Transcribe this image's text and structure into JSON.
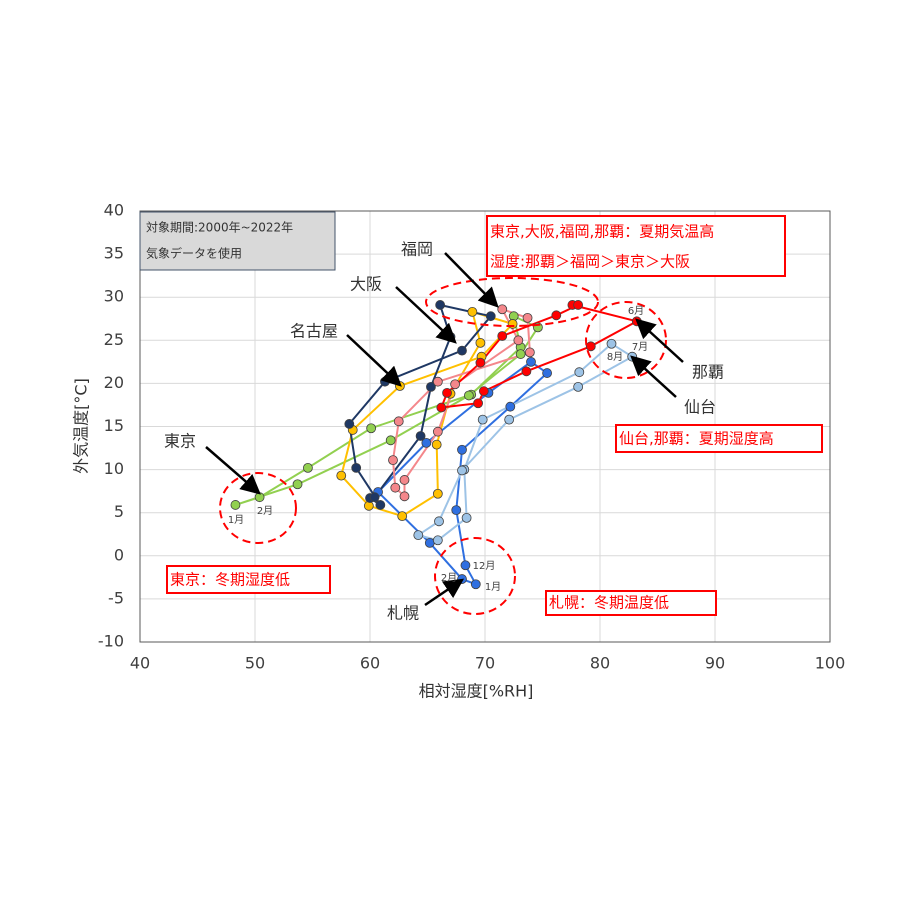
{
  "chart_data": {
    "type": "scatter",
    "xlabel": "相対湿度[%RH]",
    "ylabel": "外気温度[°C]",
    "xlim": [
      40,
      100
    ],
    "xticks": [
      40,
      50,
      60,
      70,
      80,
      90,
      100
    ],
    "ylim": [
      -10,
      40
    ],
    "yticks": [
      -10,
      -5,
      0,
      5,
      10,
      15,
      20,
      25,
      30,
      35,
      40
    ],
    "grid": true,
    "series": [
      {
        "name": "札幌",
        "color": "#2f6fe0",
        "x": [
          69.2,
          68.0,
          65.2,
          60.7,
          64.9,
          70.3,
          74.0,
          75.4,
          72.2,
          68.0,
          67.5,
          68.3
        ],
        "values": [
          -3.3,
          -2.7,
          1.5,
          7.4,
          13.1,
          18.9,
          22.5,
          21.2,
          17.3,
          12.3,
          5.3,
          -1.1
        ]
      },
      {
        "name": "仙台",
        "color": "#9dc3e6",
        "x": [
          64.2,
          65.9,
          68.4,
          68.2,
          69.8,
          78.2,
          81.0,
          82.8,
          78.1,
          72.1,
          68.0,
          66.0
        ],
        "values": [
          2.4,
          1.8,
          4.4,
          10.0,
          15.8,
          21.3,
          24.6,
          23.1,
          19.6,
          15.8,
          9.9,
          4.0
        ]
      },
      {
        "name": "東京",
        "color": "#92d050",
        "x": [
          48.3,
          50.4,
          54.6,
          60.1,
          68.8,
          73.1,
          72.5,
          74.6,
          73.1,
          68.6,
          61.8,
          53.7
        ],
        "values": [
          5.9,
          6.8,
          10.2,
          14.8,
          18.7,
          24.2,
          27.8,
          26.5,
          23.4,
          18.6,
          13.4,
          8.3
        ]
      },
      {
        "name": "名古屋",
        "color": "#ffc000",
        "x": [
          62.8,
          59.9,
          57.5,
          58.5,
          62.6,
          69.7,
          72.4,
          68.9,
          69.6,
          67.0,
          65.8,
          65.9
        ],
        "values": [
          4.6,
          5.8,
          9.3,
          14.6,
          19.7,
          23.1,
          26.9,
          28.3,
          24.7,
          18.8,
          12.9,
          7.2
        ]
      },
      {
        "name": "大阪",
        "color": "#1f3864",
        "x": [
          60.0,
          60.9,
          58.8,
          58.2,
          61.3,
          68.0,
          70.5,
          66.1,
          67.0,
          65.3,
          64.4,
          60.4
        ],
        "values": [
          6.7,
          5.9,
          10.2,
          15.3,
          20.2,
          23.8,
          27.8,
          29.1,
          25.4,
          19.6,
          13.9,
          6.8
        ]
      },
      {
        "name": "福岡",
        "color": "#f4878b",
        "x": [
          63.0,
          62.2,
          62.0,
          62.5,
          65.9,
          73.9,
          73.7,
          71.5,
          72.9,
          67.4,
          65.9,
          63.0
        ],
        "values": [
          6.9,
          7.9,
          11.1,
          15.6,
          20.2,
          23.6,
          27.6,
          28.6,
          25.0,
          19.9,
          14.4,
          8.8
        ]
      },
      {
        "name": "那覇",
        "color": "#ff0000",
        "x": [
          66.2,
          69.4,
          69.9,
          73.6,
          79.2,
          83.2,
          77.6,
          78.1,
          76.2,
          71.5,
          69.6,
          66.7
        ],
        "values": [
          17.2,
          17.7,
          19.1,
          21.4,
          24.3,
          27.2,
          29.1,
          29.1,
          27.9,
          25.5,
          22.4,
          18.9
        ]
      }
    ],
    "month_labels": [
      "1月",
      "2月",
      "6月",
      "7月",
      "8月",
      "12月",
      "2月",
      "1月"
    ],
    "notes": {
      "period": [
        "対象期間:2000年~2022年",
        "気象データを使用"
      ],
      "summer": [
        "東京,大阪,福岡,那覇：夏期気温高",
        "湿度:那覇＞福岡＞東京＞大阪"
      ],
      "humid": "仙台,那覇：夏期湿度高",
      "tokyo_winter": "東京：冬期湿度低",
      "sapporo_winter": "札幌：冬期温度低"
    }
  }
}
